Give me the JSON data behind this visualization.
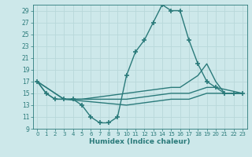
{
  "xlabel": "Humidex (Indice chaleur)",
  "xlim": [
    -0.5,
    23.5
  ],
  "ylim": [
    9,
    30
  ],
  "yticks": [
    9,
    11,
    13,
    15,
    17,
    19,
    21,
    23,
    25,
    27,
    29
  ],
  "xticks": [
    0,
    1,
    2,
    3,
    4,
    5,
    6,
    7,
    8,
    9,
    10,
    11,
    12,
    13,
    14,
    15,
    16,
    17,
    18,
    19,
    20,
    21,
    22,
    23
  ],
  "bg_color": "#cde8ea",
  "line_color": "#2a7a7a",
  "grid_color": "#b8d8da",
  "lines": [
    {
      "x": [
        0,
        1,
        2,
        3,
        4,
        5,
        6,
        7,
        8,
        9,
        10,
        11,
        12,
        13,
        14,
        15,
        16,
        17,
        18,
        19,
        20,
        21,
        22,
        23
      ],
      "y": [
        17,
        15,
        14,
        14,
        14,
        13,
        11,
        10,
        10,
        11,
        18,
        22,
        24,
        27,
        30,
        29,
        29,
        24,
        20,
        17,
        16,
        15,
        15,
        15
      ],
      "marker": "+",
      "markersize": 4,
      "linewidth": 1.0,
      "linestyle": "-"
    },
    {
      "x": [
        0,
        1,
        2,
        3,
        4,
        5,
        10,
        15,
        16,
        17,
        18,
        19,
        20,
        21,
        22,
        23
      ],
      "y": [
        17,
        15,
        14,
        14,
        14,
        14,
        15,
        16,
        16,
        17,
        18,
        20,
        17,
        15,
        15,
        15
      ],
      "marker": null,
      "markersize": 0,
      "linewidth": 1.0,
      "linestyle": "-"
    },
    {
      "x": [
        0,
        3,
        10,
        15,
        17,
        19,
        20,
        23
      ],
      "y": [
        17,
        14,
        14,
        15,
        15,
        16,
        16,
        15
      ],
      "marker": null,
      "markersize": 0,
      "linewidth": 1.0,
      "linestyle": "-"
    },
    {
      "x": [
        0,
        3,
        10,
        15,
        17,
        19,
        20,
        23
      ],
      "y": [
        17,
        14,
        13,
        14,
        14,
        15,
        15,
        15
      ],
      "marker": null,
      "markersize": 0,
      "linewidth": 1.0,
      "linestyle": "-"
    }
  ]
}
